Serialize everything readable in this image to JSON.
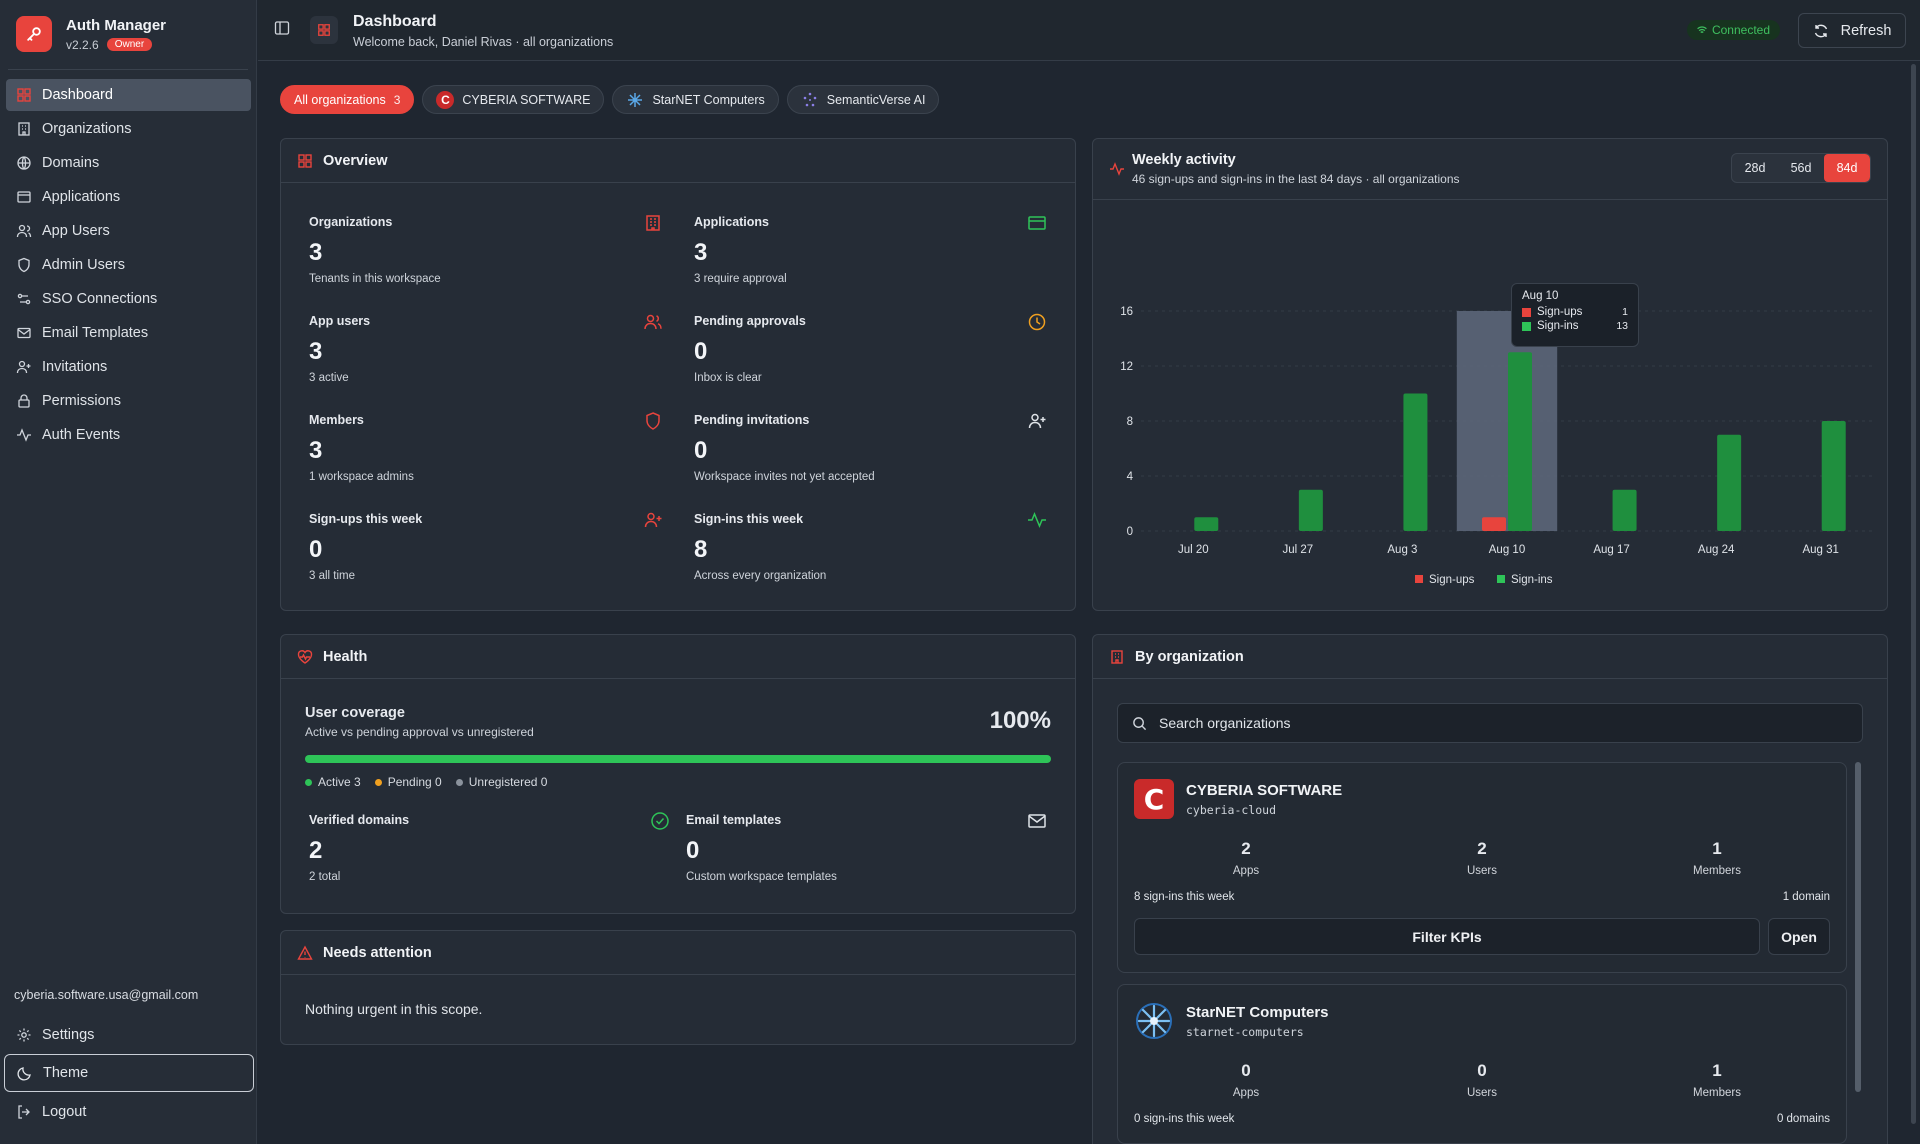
{
  "brand": {
    "title": "Auth Manager",
    "version": "v2.2.6",
    "role": "Owner"
  },
  "sidebar": {
    "items": [
      {
        "label": "Dashboard",
        "icon": "grid-icon",
        "active": true
      },
      {
        "label": "Organizations",
        "icon": "building-icon"
      },
      {
        "label": "Domains",
        "icon": "globe-icon"
      },
      {
        "label": "Applications",
        "icon": "app-window-icon"
      },
      {
        "label": "App Users",
        "icon": "users-icon"
      },
      {
        "label": "Admin Users",
        "icon": "shield-icon"
      },
      {
        "label": "SSO Connections",
        "icon": "link-icon"
      },
      {
        "label": "Email Templates",
        "icon": "mail-icon"
      },
      {
        "label": "Invitations",
        "icon": "user-plus-icon"
      },
      {
        "label": "Permissions",
        "icon": "lock-icon"
      },
      {
        "label": "Auth Events",
        "icon": "activity-icon"
      }
    ],
    "user_email": "cyberia.software.usa@gmail.com",
    "settings": "Settings",
    "theme": "Theme",
    "logout": "Logout"
  },
  "header": {
    "title": "Dashboard",
    "subtitle": "Welcome back, Daniel Rivas · all organizations",
    "status": "Connected",
    "refresh": "Refresh"
  },
  "chips": [
    {
      "label": "All organizations",
      "count": "3",
      "active": true
    },
    {
      "label": "CYBERIA SOFTWARE"
    },
    {
      "label": "StarNET Computers"
    },
    {
      "label": "SemanticVerse AI"
    }
  ],
  "overview": {
    "title": "Overview",
    "kpis": [
      {
        "label": "Organizations",
        "value": "3",
        "note": "Tenants in this workspace"
      },
      {
        "label": "Applications",
        "value": "3",
        "note": "3 require approval"
      },
      {
        "label": "App users",
        "value": "3",
        "note": "3 active"
      },
      {
        "label": "Pending approvals",
        "value": "0",
        "note": "Inbox is clear"
      },
      {
        "label": "Members",
        "value": "3",
        "note": "1 workspace admins"
      },
      {
        "label": "Pending invitations",
        "value": "0",
        "note": "Workspace invites not yet accepted"
      },
      {
        "label": "Sign-ups this week",
        "value": "0",
        "note": "3 all time"
      },
      {
        "label": "Sign-ins this week",
        "value": "8",
        "note": "Across every organization"
      }
    ]
  },
  "weekly": {
    "title": "Weekly activity",
    "subtitle": "46 sign-ups and sign-ins in the last 84 days · all organizations",
    "ranges": [
      "28d",
      "56d",
      "84d"
    ],
    "active_range": "84d",
    "tooltip": {
      "date": "Aug 10",
      "rows": [
        {
          "label": "Sign-ups",
          "value": "1"
        },
        {
          "label": "Sign-ins",
          "value": "13"
        }
      ]
    }
  },
  "chart_data": {
    "type": "bar",
    "categories": [
      "Jul 20",
      "Jul 27",
      "Aug 3",
      "Aug 10",
      "Aug 17",
      "Aug 24",
      "Aug 31"
    ],
    "series": [
      {
        "name": "Sign-ups",
        "color": "#e8443d",
        "values": [
          0,
          0,
          0,
          1,
          0,
          0,
          0
        ]
      },
      {
        "name": "Sign-ins",
        "color": "#1f8f3e",
        "values": [
          1,
          3,
          10,
          13,
          3,
          7,
          8
        ]
      }
    ],
    "yticks": [
      0,
      4,
      8,
      12,
      16
    ],
    "ylim": [
      0,
      16
    ],
    "highlight": "Aug 10",
    "legend": "bottom"
  },
  "health": {
    "title": "Health",
    "coverage_title": "User coverage",
    "coverage_sub": "Active vs pending approval vs unregistered",
    "coverage_pct": "100%",
    "coverage_fraction": 1.0,
    "legend": [
      {
        "label": "Active 3",
        "color": "#2ec458"
      },
      {
        "label": "Pending 0",
        "color": "#f0a020"
      },
      {
        "label": "Unregistered 0",
        "color": "#8a929c"
      }
    ],
    "kpis": [
      {
        "label": "Verified domains",
        "value": "2",
        "note": "2 total"
      },
      {
        "label": "Email templates",
        "value": "0",
        "note": "Custom workspace templates"
      }
    ]
  },
  "attention": {
    "title": "Needs attention",
    "message": "Nothing urgent in this scope."
  },
  "orgs": {
    "title": "By organization",
    "search_placeholder": "Search organizations",
    "list": [
      {
        "name": "CYBERIA SOFTWARE",
        "slug": "cyberia-cloud",
        "apps": "2",
        "users": "2",
        "members": "1",
        "apps_label": "Apps",
        "users_label": "Users",
        "members_label": "Members",
        "signins": "8 sign-ins this week",
        "domains": "1 domain",
        "filter": "Filter KPIs",
        "open": "Open"
      },
      {
        "name": "StarNET Computers",
        "slug": "starnet-computers",
        "apps": "0",
        "users": "0",
        "members": "1",
        "apps_label": "Apps",
        "users_label": "Users",
        "members_label": "Members",
        "signins": "0 sign-ins this week",
        "domains": "0 domains"
      }
    ]
  }
}
